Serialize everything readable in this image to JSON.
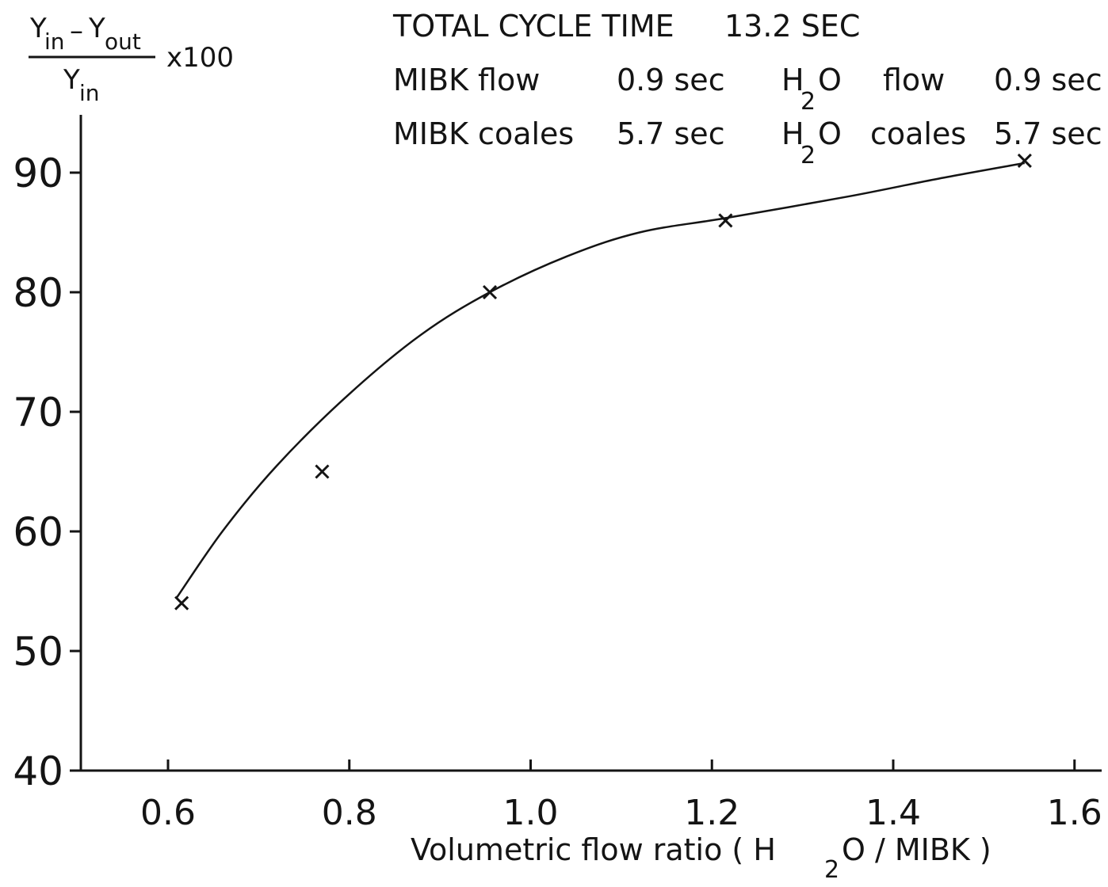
{
  "chart_data": {
    "type": "scatter",
    "xlabel": {
      "prefix": "Volumetric flow ratio ( H",
      "subscript": "2",
      "suffix": "O / MIBK )"
    },
    "ylabel": {
      "num_y1": "Y",
      "num_y1_sub": "in",
      "num_minus": "–",
      "num_y2": "Y",
      "num_y2_sub": "out",
      "den_y": "Y",
      "den_y_sub": "in",
      "multiplier": "x100"
    },
    "xlim": [
      0.5,
      1.65
    ],
    "ylim": [
      40,
      95
    ],
    "x_ticks": [
      {
        "value": 0.6,
        "label": "0.6"
      },
      {
        "value": 0.8,
        "label": "0.8"
      },
      {
        "value": 1.0,
        "label": "1.0"
      },
      {
        "value": 1.2,
        "label": "1.2"
      },
      {
        "value": 1.4,
        "label": "1.4"
      },
      {
        "value": 1.6,
        "label": "1.6"
      }
    ],
    "y_ticks": [
      {
        "value": 40,
        "label": "40"
      },
      {
        "value": 50,
        "label": "50"
      },
      {
        "value": 60,
        "label": "60"
      },
      {
        "value": 70,
        "label": "70"
      },
      {
        "value": 80,
        "label": "80"
      },
      {
        "value": 90,
        "label": "90"
      }
    ],
    "points": [
      {
        "x": 0.615,
        "y": 54
      },
      {
        "x": 0.77,
        "y": 65
      },
      {
        "x": 0.955,
        "y": 80
      },
      {
        "x": 1.215,
        "y": 86
      },
      {
        "x": 1.545,
        "y": 91
      }
    ],
    "point_marker": "x",
    "curve": [
      {
        "x": 0.61,
        "y": 54.5
      },
      {
        "x": 0.66,
        "y": 60
      },
      {
        "x": 0.72,
        "y": 65.5
      },
      {
        "x": 0.8,
        "y": 71.5
      },
      {
        "x": 0.88,
        "y": 76.5
      },
      {
        "x": 0.955,
        "y": 80
      },
      {
        "x": 1.04,
        "y": 83
      },
      {
        "x": 1.12,
        "y": 85
      },
      {
        "x": 1.215,
        "y": 86.2
      },
      {
        "x": 1.35,
        "y": 88
      },
      {
        "x": 1.45,
        "y": 89.5
      },
      {
        "x": 1.545,
        "y": 90.8
      }
    ],
    "grid": false,
    "annotations": {
      "cycle_label": "TOTAL CYCLE TIME",
      "cycle_value": "13.2 SEC",
      "mibk_flow_label": "MIBK flow",
      "mibk_flow_value": "0.9 sec",
      "h2o_flow_h": "H",
      "h2o_flow_sub": "2",
      "h2o_flow_o": "O",
      "h2o_flow_label": "flow",
      "h2o_flow_value": "0.9 sec",
      "mibk_coales_label": "MIBK coales",
      "mibk_coales_value": "5.7 sec",
      "h2o_coales_h": "H",
      "h2o_coales_sub": "2",
      "h2o_coales_o": "O",
      "h2o_coales_label": "coales",
      "h2o_coales_value": "5.7 sec"
    }
  },
  "colors": {
    "ink": "#141414",
    "background": "#ffffff"
  }
}
